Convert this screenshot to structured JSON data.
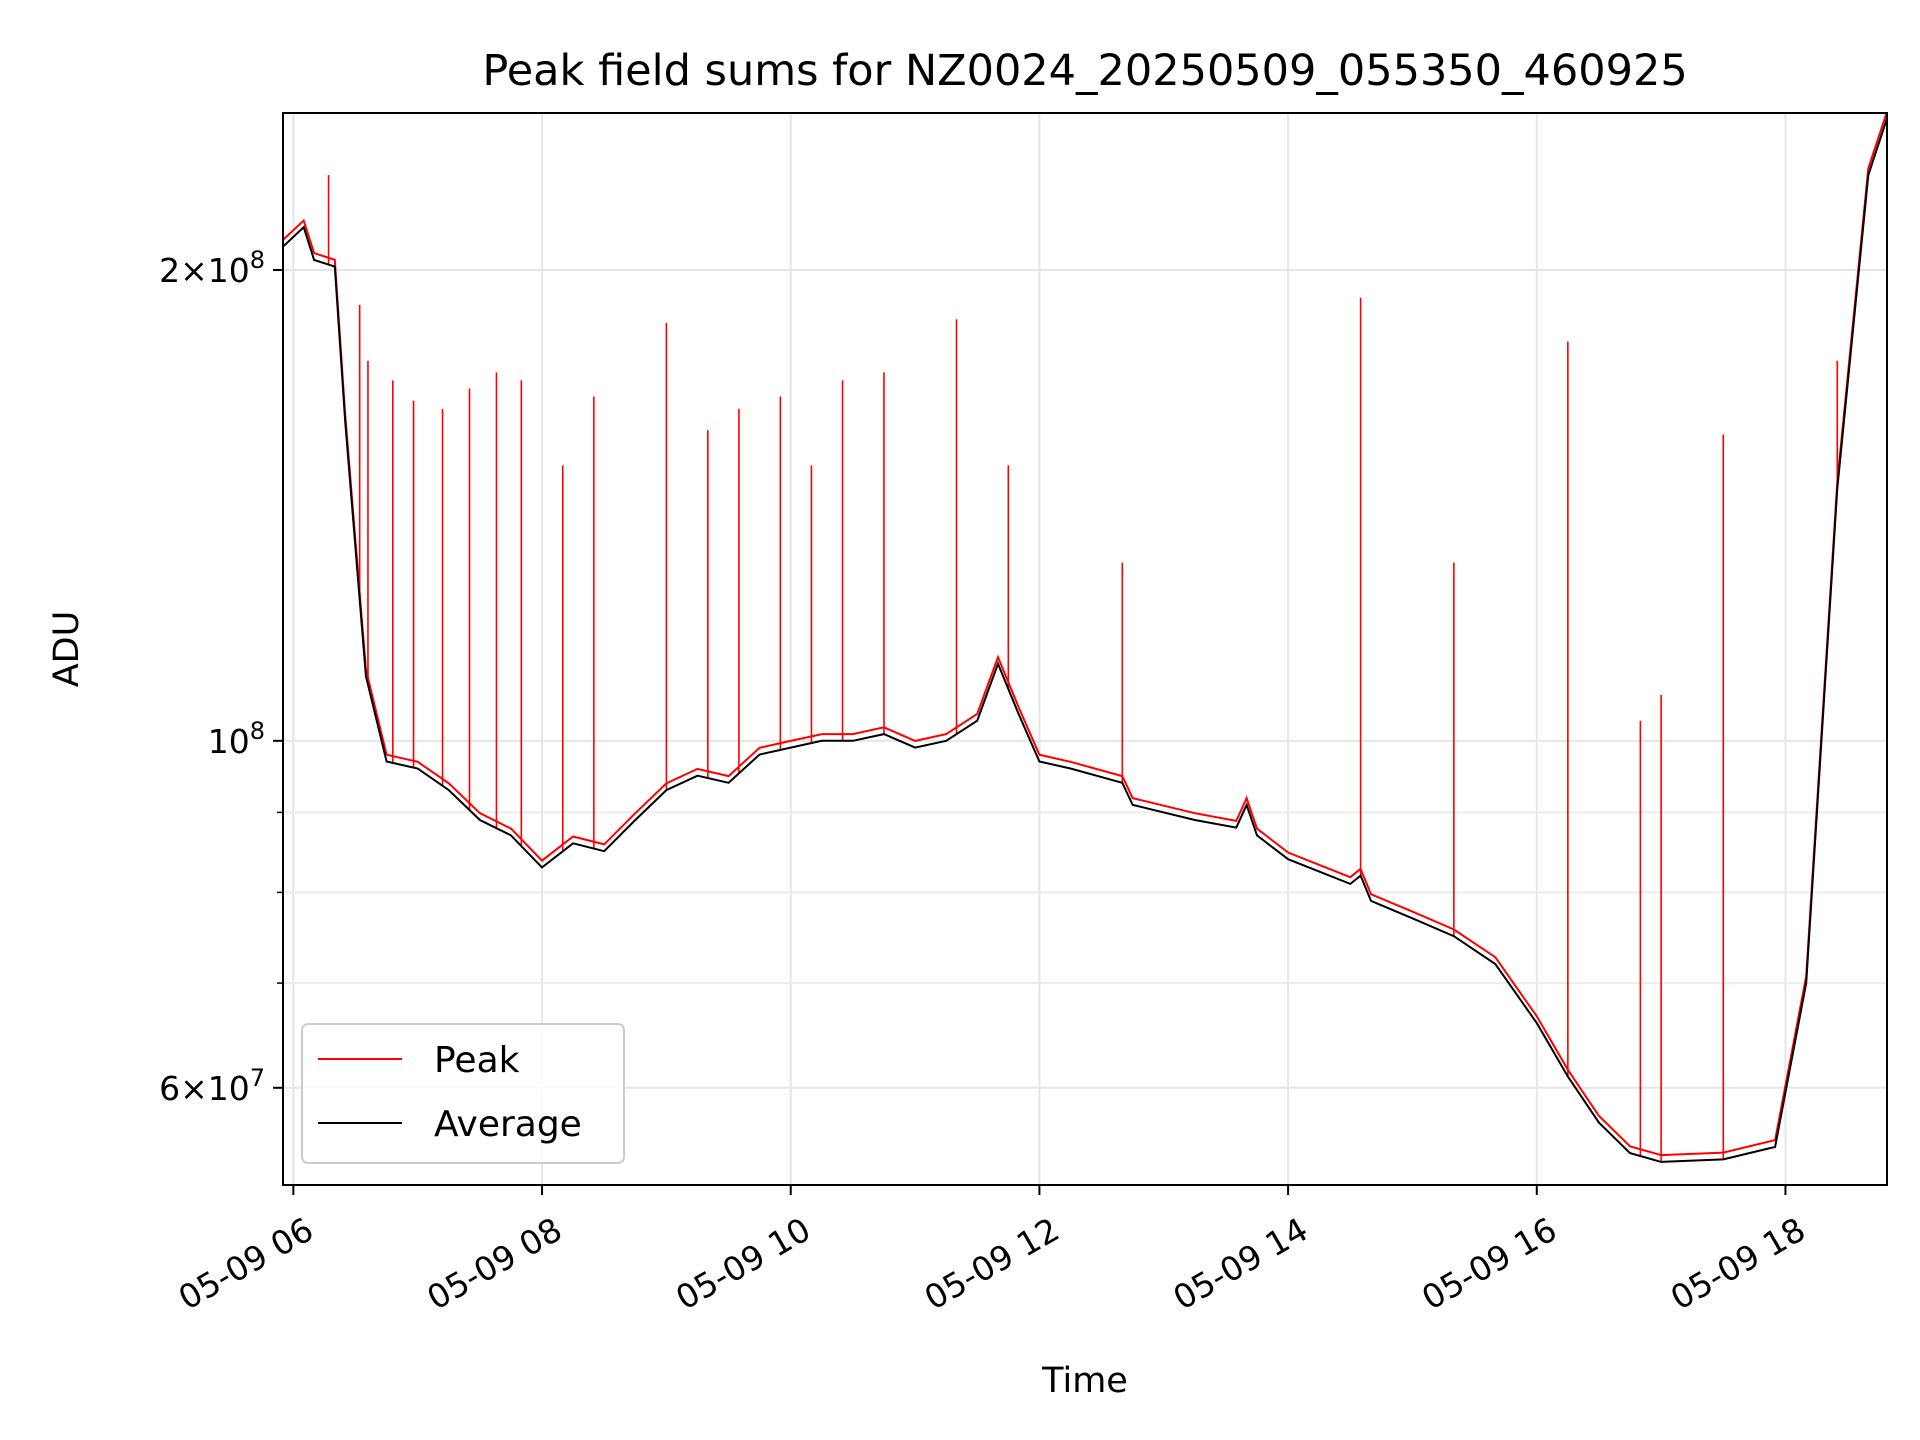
{
  "chart_data": {
    "type": "line",
    "title": "Peak field sums for NZ0024_20250509_055350_460925",
    "xlabel": "Time",
    "ylabel": "ADU",
    "yscale": "log",
    "ylim": [
      52000000,
      252000000
    ],
    "xlim": [
      "2025-05-09 05:55",
      "2025-05-09 18:49"
    ],
    "grid": true,
    "legend_position": "lower-left",
    "x_ticks": [
      {
        "t": "2025-05-09 06:00",
        "label": "05-09 06"
      },
      {
        "t": "2025-05-09 08:00",
        "label": "05-09 08"
      },
      {
        "t": "2025-05-09 10:00",
        "label": "05-09 10"
      },
      {
        "t": "2025-05-09 12:00",
        "label": "05-09 12"
      },
      {
        "t": "2025-05-09 14:00",
        "label": "05-09 14"
      },
      {
        "t": "2025-05-09 16:00",
        "label": "05-09 16"
      },
      {
        "t": "2025-05-09 18:00",
        "label": "05-09 18"
      }
    ],
    "y_major_ticks": [
      {
        "v": 60000000,
        "base": "6",
        "exp": "7"
      },
      {
        "v": 100000000,
        "base": "",
        "exp": "8"
      },
      {
        "v": 200000000,
        "base": "2",
        "exp": "8"
      }
    ],
    "y_minor_ticks": [
      70000000,
      80000000,
      90000000
    ],
    "series": [
      {
        "name": "Average",
        "color": "#000000",
        "points": [
          [
            "2025-05-09 05:55",
            207000000
          ],
          [
            "2025-05-09 06:05",
            213000000
          ],
          [
            "2025-05-09 06:10",
            203000000
          ],
          [
            "2025-05-09 06:20",
            201000000
          ],
          [
            "2025-05-09 06:25",
            160000000
          ],
          [
            "2025-05-09 06:35",
            110000000
          ],
          [
            "2025-05-09 06:45",
            97000000
          ],
          [
            "2025-05-09 07:00",
            96000000
          ],
          [
            "2025-05-09 07:15",
            93000000
          ],
          [
            "2025-05-09 07:30",
            89000000
          ],
          [
            "2025-05-09 07:45",
            87000000
          ],
          [
            "2025-05-09 08:00",
            83000000
          ],
          [
            "2025-05-09 08:15",
            86000000
          ],
          [
            "2025-05-09 08:30",
            85000000
          ],
          [
            "2025-05-09 08:45",
            89000000
          ],
          [
            "2025-05-09 09:00",
            93000000
          ],
          [
            "2025-05-09 09:15",
            95000000
          ],
          [
            "2025-05-09 09:30",
            94000000
          ],
          [
            "2025-05-09 09:45",
            98000000
          ],
          [
            "2025-05-09 10:00",
            99000000
          ],
          [
            "2025-05-09 10:15",
            100000000
          ],
          [
            "2025-05-09 10:30",
            100000000
          ],
          [
            "2025-05-09 10:45",
            101000000
          ],
          [
            "2025-05-09 11:00",
            99000000
          ],
          [
            "2025-05-09 11:15",
            100000000
          ],
          [
            "2025-05-09 11:30",
            103000000
          ],
          [
            "2025-05-09 11:40",
            112000000
          ],
          [
            "2025-05-09 11:50",
            104000000
          ],
          [
            "2025-05-09 12:00",
            97000000
          ],
          [
            "2025-05-09 12:15",
            96000000
          ],
          [
            "2025-05-09 12:40",
            94000000
          ],
          [
            "2025-05-09 12:45",
            91000000
          ],
          [
            "2025-05-09 13:15",
            89000000
          ],
          [
            "2025-05-09 13:35",
            88000000
          ],
          [
            "2025-05-09 13:40",
            91000000
          ],
          [
            "2025-05-09 13:45",
            87000000
          ],
          [
            "2025-05-09 14:00",
            84000000
          ],
          [
            "2025-05-09 14:30",
            81000000
          ],
          [
            "2025-05-09 14:35",
            82000000
          ],
          [
            "2025-05-09 14:40",
            79000000
          ],
          [
            "2025-05-09 15:00",
            77000000
          ],
          [
            "2025-05-09 15:20",
            75000000
          ],
          [
            "2025-05-09 15:40",
            72000000
          ],
          [
            "2025-05-09 16:00",
            66000000
          ],
          [
            "2025-05-09 16:15",
            61000000
          ],
          [
            "2025-05-09 16:30",
            57000000
          ],
          [
            "2025-05-09 16:45",
            54500000
          ],
          [
            "2025-05-09 17:00",
            53800000
          ],
          [
            "2025-05-09 17:30",
            54000000
          ],
          [
            "2025-05-09 17:55",
            55000000
          ],
          [
            "2025-05-09 18:10",
            70000000
          ],
          [
            "2025-05-09 18:25",
            145000000
          ],
          [
            "2025-05-09 18:40",
            230000000
          ],
          [
            "2025-05-09 18:49",
            250000000
          ]
        ]
      },
      {
        "name": "Peak",
        "color": "#ff0000",
        "spikes": [
          [
            "2025-05-09 06:17",
            230000000
          ],
          [
            "2025-05-09 06:32",
            190000000
          ],
          [
            "2025-05-09 06:36",
            175000000
          ],
          [
            "2025-05-09 06:48",
            170000000
          ],
          [
            "2025-05-09 06:58",
            165000000
          ],
          [
            "2025-05-09 07:12",
            163000000
          ],
          [
            "2025-05-09 07:25",
            168000000
          ],
          [
            "2025-05-09 07:38",
            172000000
          ],
          [
            "2025-05-09 07:50",
            170000000
          ],
          [
            "2025-05-09 08:10",
            150000000
          ],
          [
            "2025-05-09 08:25",
            166000000
          ],
          [
            "2025-05-09 09:00",
            185000000
          ],
          [
            "2025-05-09 09:20",
            158000000
          ],
          [
            "2025-05-09 09:35",
            163000000
          ],
          [
            "2025-05-09 09:55",
            166000000
          ],
          [
            "2025-05-09 10:10",
            150000000
          ],
          [
            "2025-05-09 10:25",
            170000000
          ],
          [
            "2025-05-09 10:45",
            172000000
          ],
          [
            "2025-05-09 11:20",
            186000000
          ],
          [
            "2025-05-09 11:45",
            150000000
          ],
          [
            "2025-05-09 12:40",
            130000000
          ],
          [
            "2025-05-09 14:35",
            192000000
          ],
          [
            "2025-05-09 15:20",
            130000000
          ],
          [
            "2025-05-09 16:15",
            180000000
          ],
          [
            "2025-05-09 16:50",
            103000000
          ],
          [
            "2025-05-09 17:00",
            107000000
          ],
          [
            "2025-05-09 17:30",
            157000000
          ],
          [
            "2025-05-09 18:25",
            175000000
          ]
        ]
      }
    ]
  }
}
